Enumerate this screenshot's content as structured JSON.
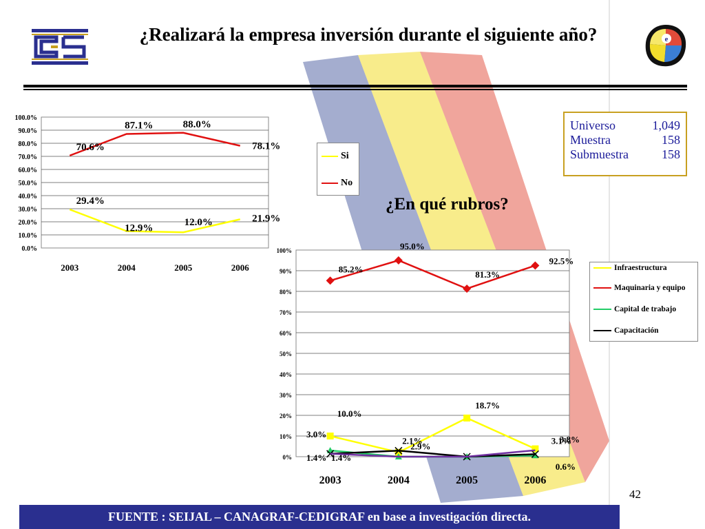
{
  "title": "¿Realizará la empresa inversión durante el siguiente año?",
  "subtitle": "¿En qué rubros?",
  "info_box": [
    {
      "label": "Universo",
      "value": "1,049"
    },
    {
      "label": "Muestra",
      "value": "158"
    },
    {
      "label": "Submuestra",
      "value": "158"
    }
  ],
  "page_number": "42",
  "footer": "FUENTE :  SEIJAL – CANAGRAF-CEDIGRAF en base a investigación directa.",
  "chart_data": [
    {
      "type": "line",
      "x": [
        "2003",
        "2004",
        "2005",
        "2006"
      ],
      "ylim": [
        0,
        100
      ],
      "yticks": [
        "0.0%",
        "10.0%",
        "20.0%",
        "30.0%",
        "40.0%",
        "50.0%",
        "60.0%",
        "70.0%",
        "80.0%",
        "90.0%",
        "100.0%"
      ],
      "grid": true,
      "legend": "right",
      "series": [
        {
          "name": "Si",
          "color": "#ffff00",
          "values": [
            29.4,
            12.9,
            12.0,
            21.9
          ],
          "labels": [
            "29.4%",
            "12.9%",
            "12.0%",
            "21.9%"
          ]
        },
        {
          "name": "No",
          "color": "#e01010",
          "values": [
            70.6,
            87.1,
            88.0,
            78.1
          ],
          "labels": [
            "70.6%",
            "87.1%",
            "88.0%",
            "78.1%"
          ]
        }
      ]
    },
    {
      "type": "line",
      "x": [
        "2003",
        "2004",
        "2005",
        "2006"
      ],
      "ylim": [
        0,
        100
      ],
      "yticks": [
        "0%",
        "10%",
        "20%",
        "30%",
        "40%",
        "50%",
        "60%",
        "70%",
        "80%",
        "90%",
        "100%"
      ],
      "grid": true,
      "legend": "right",
      "series": [
        {
          "name": "Infraestructura",
          "color": "#ffff00",
          "marker": "square",
          "values": [
            10.0,
            2.1,
            18.7,
            3.8
          ],
          "labels": [
            "10.0%",
            "2.1%",
            "18.7%",
            "3.8%"
          ]
        },
        {
          "name": "Maquinaria y equipo",
          "color": "#e01010",
          "marker": "diamond",
          "values": [
            85.2,
            95.0,
            81.3,
            92.5
          ],
          "labels": [
            "85.2%",
            "95.0%",
            "81.3%",
            "92.5%"
          ]
        },
        {
          "name": "Capital de trabajo",
          "color": "#22cc66",
          "marker": "triangle",
          "values": [
            3.0,
            0,
            0,
            0.6
          ],
          "labels": [
            "3.0%",
            "",
            "",
            "0.6%"
          ]
        },
        {
          "name": "Capacitación",
          "color": "#000000",
          "marker": "x",
          "values": [
            1.4,
            2.9,
            0,
            1.2
          ],
          "labels": [
            "1.4%",
            "2.9%",
            "",
            ""
          ]
        },
        {
          "name": "",
          "color": "#7030a0",
          "marker": "none",
          "values": [
            1.4,
            0,
            0,
            3.1
          ],
          "labels": [
            "1.4%",
            "",
            "",
            "3.1%"
          ]
        }
      ]
    }
  ]
}
